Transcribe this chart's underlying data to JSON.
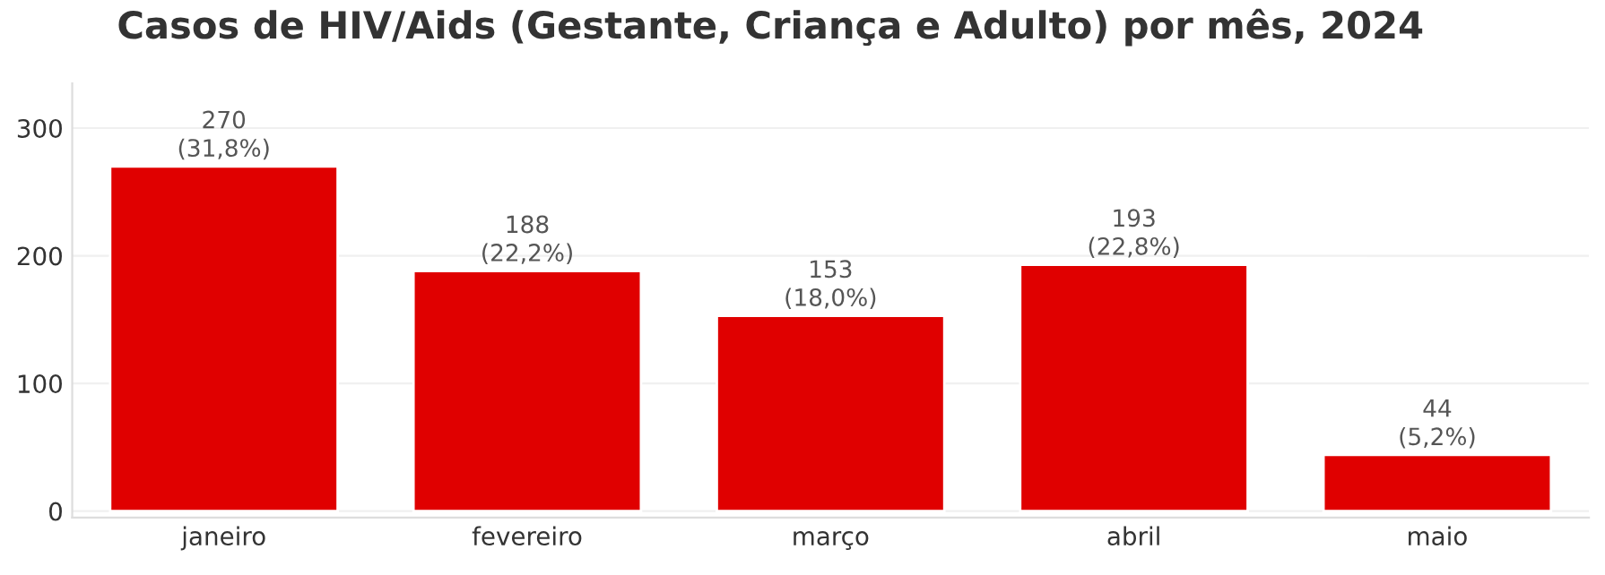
{
  "chart_data": {
    "type": "bar",
    "title": "Casos de HIV/Aids (Gestante, Criança e Adulto) por mês, 2024",
    "categories": [
      "janeiro",
      "fevereiro",
      "março",
      "abril",
      "maio"
    ],
    "values": [
      270,
      188,
      153,
      193,
      44
    ],
    "value_labels": [
      "270\n(31,8%)",
      "188\n(22,2%)",
      "153\n(18,0%)",
      "193\n(22,8%)",
      "44\n(5,2%)"
    ],
    "color": "#e00000",
    "ylim": [
      -5,
      335
    ],
    "yticks": [
      0,
      100,
      200,
      300
    ],
    "grid": "y",
    "legend": false
  }
}
